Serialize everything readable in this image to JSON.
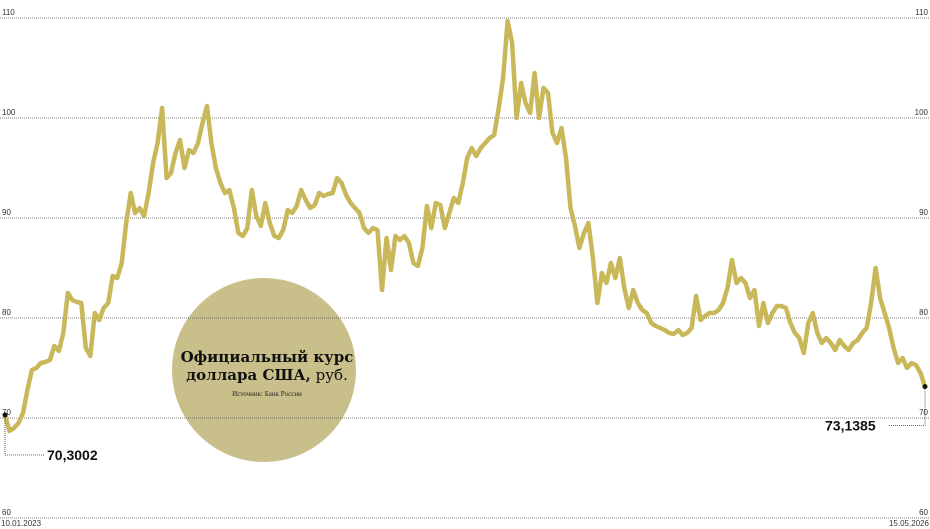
{
  "chart_data": {
    "type": "line",
    "title": "Официальный курс доллара США,",
    "unit": "руб.",
    "source": "Источник: Банк России",
    "categories": [
      "10.01.2023",
      null,
      null,
      null,
      null,
      null,
      null,
      null,
      null,
      null,
      null,
      null,
      null,
      null,
      null,
      null,
      null,
      null,
      null,
      null,
      null,
      null,
      null,
      null,
      null,
      null,
      null,
      null,
      null,
      null,
      null,
      null,
      null,
      null,
      null,
      null,
      null,
      null,
      null,
      null,
      null,
      null,
      null,
      null,
      null,
      null,
      null,
      null,
      null,
      null,
      null,
      null,
      null,
      null,
      null,
      null,
      null,
      null,
      null,
      null,
      null,
      null,
      null,
      null,
      null,
      null,
      null,
      null,
      null,
      null,
      null,
      null,
      null,
      null,
      null,
      null,
      null,
      null,
      null,
      null,
      null,
      null,
      null,
      null,
      null,
      null,
      null,
      null,
      null,
      null,
      null,
      null,
      null,
      null,
      null,
      null,
      null,
      null,
      null,
      null,
      null,
      null,
      null,
      null,
      null,
      null,
      null,
      null,
      null,
      null,
      null,
      null,
      null,
      null,
      null,
      null,
      null,
      null,
      null,
      null,
      null,
      null,
      null,
      null,
      null,
      null,
      null,
      null,
      null,
      null,
      null,
      null,
      null,
      null,
      null,
      null,
      null,
      null,
      null,
      null,
      null,
      null,
      null,
      null,
      null,
      null,
      null,
      null,
      null,
      null,
      null,
      null,
      null,
      null,
      null,
      null,
      null,
      null,
      null,
      null,
      null,
      null,
      null,
      null,
      null,
      null,
      null,
      null,
      null,
      null,
      null,
      null,
      null,
      null,
      null,
      null,
      null,
      null,
      null,
      null,
      null,
      null,
      null,
      null,
      null,
      null,
      null,
      null,
      null,
      null,
      null,
      null,
      null,
      null,
      null,
      null,
      null,
      null,
      null,
      null,
      null,
      null,
      null,
      null,
      null,
      "15.05.2026"
    ],
    "values": [
      70.3002,
      68.7,
      69.0,
      69.5,
      70.5,
      72.8,
      74.8,
      75.0,
      75.5,
      75.6,
      75.8,
      77.2,
      76.7,
      78.5,
      82.5,
      81.8,
      81.6,
      81.5,
      77.0,
      76.2,
      80.5,
      79.8,
      81.0,
      81.5,
      84.2,
      84.0,
      85.5,
      89.5,
      92.5,
      90.5,
      91.0,
      90.2,
      92.5,
      95.5,
      97.5,
      101.0,
      94.0,
      94.5,
      96.5,
      97.8,
      95.0,
      96.8,
      96.5,
      97.5,
      99.5,
      101.2,
      97.5,
      95.0,
      93.5,
      92.5,
      92.8,
      91.0,
      88.5,
      88.2,
      89.0,
      92.8,
      90.2,
      89.2,
      91.5,
      89.5,
      88.2,
      88.0,
      88.8,
      90.8,
      90.5,
      91.2,
      92.8,
      91.8,
      91.0,
      91.3,
      92.5,
      92.2,
      92.4,
      92.5,
      94.0,
      93.5,
      92.3,
      91.5,
      91.0,
      90.5,
      89.0,
      88.5,
      89.0,
      88.8,
      82.8,
      88.0,
      84.8,
      88.2,
      87.8,
      88.2,
      87.5,
      85.5,
      85.2,
      87.0,
      91.2,
      89.0,
      91.5,
      91.3,
      89.0,
      90.5,
      92.0,
      91.5,
      93.5,
      96.0,
      97.0,
      96.2,
      97.0,
      97.5,
      98.0,
      98.3,
      101.0,
      104.0,
      109.7,
      107.5,
      100.0,
      103.5,
      101.5,
      100.5,
      104.5,
      100.0,
      103.0,
      102.5,
      98.5,
      97.5,
      99.0,
      96.0,
      91.0,
      89.2,
      87.0,
      88.5,
      89.5,
      86.0,
      81.5,
      84.5,
      83.5,
      85.5,
      84.0,
      86.0,
      83.0,
      81.0,
      82.8,
      81.5,
      80.8,
      80.5,
      79.5,
      79.2,
      79.0,
      78.8,
      78.5,
      78.4,
      78.8,
      78.3,
      78.5,
      79.0,
      82.2,
      79.8,
      80.2,
      80.5,
      80.5,
      80.8,
      81.5,
      83.0,
      85.8,
      83.5,
      84.0,
      83.5,
      82.0,
      82.8,
      79.2,
      81.5,
      79.5,
      80.5,
      81.2,
      81.2,
      81.0,
      79.5,
      78.5,
      78.0,
      76.5,
      79.5,
      80.5,
      78.5,
      77.5,
      78.0,
      77.5,
      76.8,
      77.8,
      77.2,
      76.8,
      77.5,
      77.8,
      78.5,
      79.0,
      81.5,
      85.0,
      82.0,
      80.5,
      79.0,
      77.0,
      75.5,
      76.0,
      75.0,
      75.5,
      75.3,
      74.5,
      73.1385
    ],
    "value_labels": [
      "70,3002",
      null,
      null,
      null,
      null,
      null,
      null,
      null,
      null,
      null,
      null,
      null,
      null,
      null,
      null,
      null,
      null,
      null,
      null,
      null,
      null,
      null,
      null,
      null,
      null,
      null,
      null,
      null,
      null,
      null,
      null,
      null,
      null,
      null,
      null,
      null,
      null,
      null,
      null,
      null,
      null,
      null,
      null,
      null,
      null,
      null,
      null,
      null,
      null,
      null,
      null,
      null,
      null,
      null,
      null,
      null,
      null,
      null,
      null,
      null,
      null,
      null,
      null,
      null,
      null,
      null,
      null,
      null,
      null,
      null,
      null,
      null,
      null,
      null,
      null,
      null,
      null,
      null,
      null,
      null,
      null,
      null,
      null,
      null,
      null,
      null,
      null,
      null,
      null,
      null,
      null,
      null,
      null,
      null,
      null,
      null,
      null,
      null,
      null,
      null,
      null,
      null,
      null,
      null,
      null,
      null,
      null,
      null,
      null,
      null,
      null,
      null,
      null,
      null,
      null,
      null,
      null,
      null,
      null,
      null,
      null,
      null,
      null,
      null,
      null,
      null,
      null,
      null,
      null,
      null,
      null,
      null,
      null,
      null,
      null,
      null,
      null,
      null,
      null,
      null,
      null,
      null,
      null,
      null,
      null,
      null,
      null,
      null,
      null,
      null,
      null,
      null,
      null,
      null,
      null,
      null,
      null,
      null,
      null,
      null,
      null,
      null,
      null,
      null,
      null,
      null,
      null,
      null,
      null,
      null,
      null,
      null,
      null,
      null,
      null,
      null,
      null,
      null,
      null,
      null,
      null,
      null,
      null,
      null,
      null,
      null,
      null,
      null,
      null,
      null,
      null,
      null,
      null,
      null,
      null,
      null,
      null,
      null,
      null,
      null,
      null,
      null,
      null,
      null,
      null,
      "73,1385"
    ],
    "color": "#c8b85a",
    "ylim": [
      60,
      110
    ],
    "yticks": [
      60,
      70,
      80,
      90,
      100,
      110
    ],
    "grid": true
  }
}
